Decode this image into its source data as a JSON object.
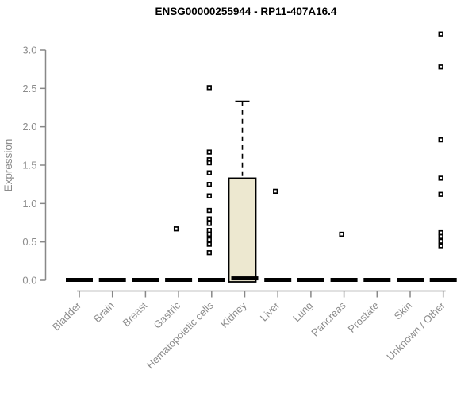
{
  "window": {
    "title": "ENSG00000255944 - RP11-407A16.4"
  },
  "chart_data": {
    "type": "boxplot",
    "title": "ENSG00000255944 - RP11-407A16.4",
    "xlabel": "",
    "ylabel": "Expression",
    "ylim": [
      0.0,
      3.3
    ],
    "yticks": [
      0.0,
      0.5,
      1.0,
      1.5,
      2.0,
      2.5,
      3.0
    ],
    "grid": false,
    "legend_position": "none",
    "categories": [
      "Bladder",
      "Brain",
      "Breast",
      "Gastric",
      "Hematopoietic cells",
      "Kidney",
      "Liver",
      "Lung",
      "Pancreas",
      "Prostate",
      "Skin",
      "Unknown / Other"
    ],
    "series": [
      {
        "name": "Bladder",
        "q1": 0,
        "median": 0,
        "q3": 0,
        "whisker_low": 0,
        "whisker_high": 0,
        "outliers": []
      },
      {
        "name": "Brain",
        "q1": 0,
        "median": 0,
        "q3": 0,
        "whisker_low": 0,
        "whisker_high": 0,
        "outliers": []
      },
      {
        "name": "Breast",
        "q1": 0,
        "median": 0,
        "q3": 0,
        "whisker_low": 0,
        "whisker_high": 0,
        "outliers": []
      },
      {
        "name": "Gastric",
        "q1": 0,
        "median": 0,
        "q3": 0,
        "whisker_low": 0,
        "whisker_high": 0,
        "outliers": [
          0.67
        ]
      },
      {
        "name": "Hematopoietic cells",
        "q1": 0,
        "median": 0,
        "q3": 0,
        "whisker_low": 0,
        "whisker_high": 0,
        "outliers": [
          2.51,
          1.67,
          1.57,
          1.53,
          1.4,
          1.25,
          1.1,
          0.91,
          0.8,
          0.74,
          0.65,
          0.6,
          0.53,
          0.47,
          0.36
        ]
      },
      {
        "name": "Kidney",
        "q1": 0,
        "median": 0.02,
        "q3": 1.33,
        "whisker_low": 0,
        "whisker_high": 2.33,
        "outliers": []
      },
      {
        "name": "Liver",
        "q1": 0,
        "median": 0,
        "q3": 0,
        "whisker_low": 0,
        "whisker_high": 0,
        "outliers": [
          1.16
        ]
      },
      {
        "name": "Lung",
        "q1": 0,
        "median": 0,
        "q3": 0,
        "whisker_low": 0,
        "whisker_high": 0,
        "outliers": []
      },
      {
        "name": "Pancreas",
        "q1": 0,
        "median": 0,
        "q3": 0,
        "whisker_low": 0,
        "whisker_high": 0,
        "outliers": [
          0.6
        ]
      },
      {
        "name": "Prostate",
        "q1": 0,
        "median": 0,
        "q3": 0,
        "whisker_low": 0,
        "whisker_high": 0,
        "outliers": []
      },
      {
        "name": "Skin",
        "q1": 0,
        "median": 0,
        "q3": 0,
        "whisker_low": 0,
        "whisker_high": 0,
        "outliers": []
      },
      {
        "name": "Unknown / Other",
        "q1": 0,
        "median": 0,
        "q3": 0,
        "whisker_low": 0,
        "whisker_high": 0,
        "outliers": [
          3.21,
          2.78,
          1.83,
          1.33,
          1.12,
          0.62,
          0.57,
          0.51,
          0.45
        ]
      }
    ],
    "colors": {
      "box_fill": "#EDE8D0",
      "box_stroke": "#000000",
      "median": "#000000",
      "point_stroke": "#000000",
      "point_fill": "#ffffff",
      "axis": "#888888",
      "tick_label": "#8c8c8c",
      "title": "#000000",
      "background": "#ffffff"
    }
  }
}
